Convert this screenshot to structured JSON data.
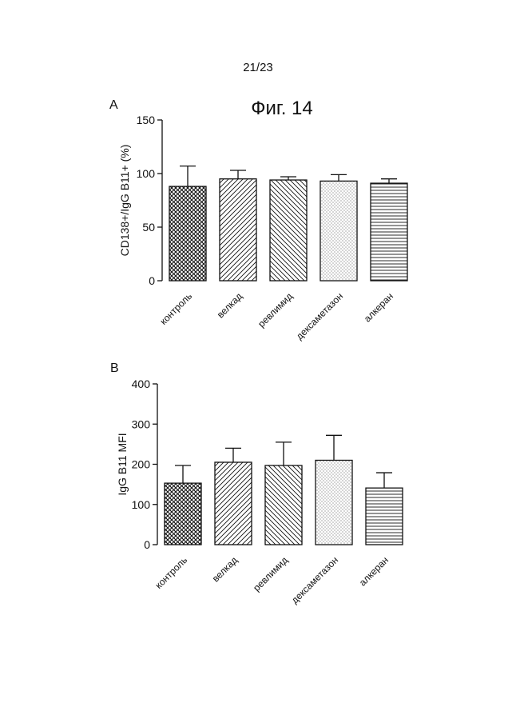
{
  "page_number": "21/23",
  "figure_title": "Фиг. 14",
  "colors": {
    "ink": "#111111",
    "background": "#ffffff"
  },
  "chart_data": [
    {
      "panel": "A",
      "type": "bar",
      "ylabel": "CD138+/IgG B11+ (%)",
      "xlabel": "",
      "ylim": [
        0,
        150
      ],
      "yticks": [
        0,
        50,
        100,
        150
      ],
      "categories": [
        "контроль",
        "велкад",
        "ревлимид",
        "дексаметазон",
        "алкеран"
      ],
      "values": [
        88,
        95,
        94,
        93,
        91
      ],
      "errors": [
        19,
        8,
        3,
        6,
        4
      ],
      "patterns": [
        "crosshatch",
        "diagonal-right",
        "diagonal-left",
        "dots",
        "horizontal"
      ]
    },
    {
      "panel": "B",
      "type": "bar",
      "ylabel": "IgG B11 MFI",
      "xlabel": "",
      "ylim": [
        0,
        400
      ],
      "yticks": [
        0,
        100,
        200,
        300,
        400
      ],
      "categories": [
        "контроль",
        "велкад",
        "ревлимид",
        "дексаметазон",
        "алкеран"
      ],
      "values": [
        153,
        205,
        197,
        210,
        141
      ],
      "errors": [
        44,
        35,
        58,
        62,
        38
      ],
      "patterns": [
        "crosshatch",
        "diagonal-right",
        "diagonal-left",
        "dots",
        "horizontal"
      ]
    }
  ]
}
